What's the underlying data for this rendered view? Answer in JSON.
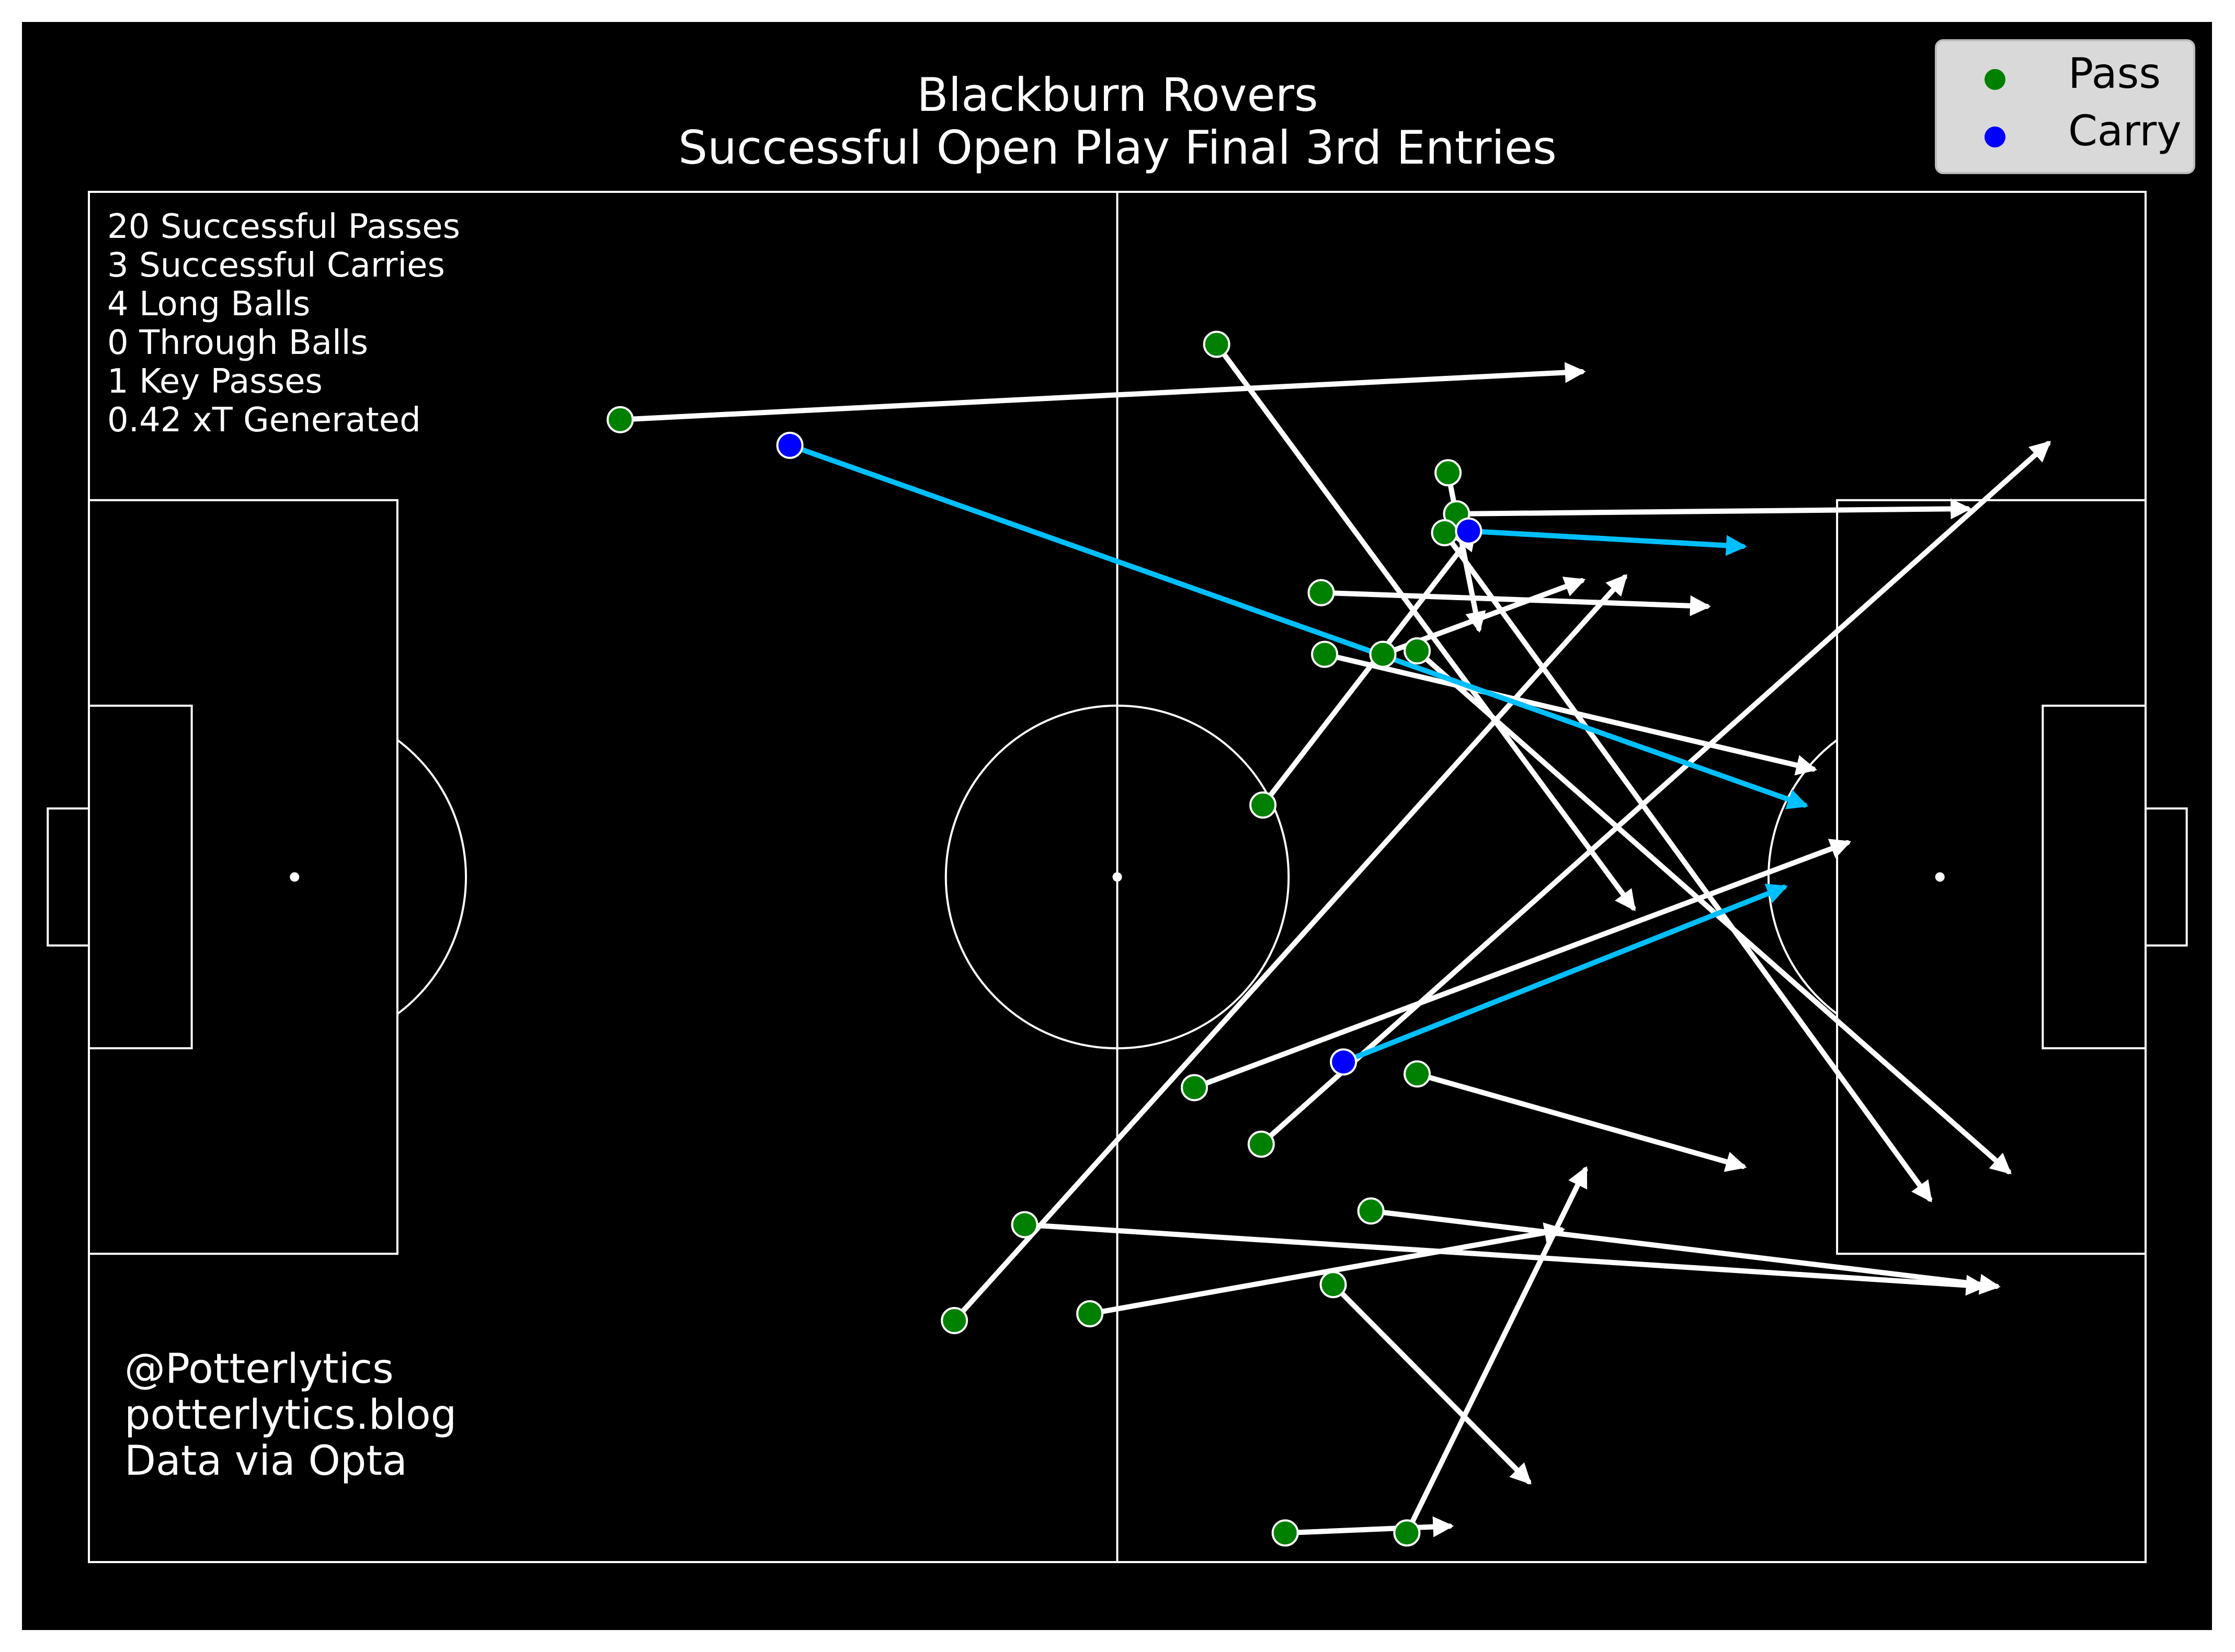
{
  "title_line1": "Blackburn Rovers",
  "title_line2": "Successful Open Play Final 3rd Entries",
  "stats": [
    "20 Successful Passes",
    "3 Successful Carries",
    "4 Long Balls",
    "0 Through Balls",
    "1 Key Passes",
    "0.42 xT Generated"
  ],
  "credits": [
    "@Potterlytics",
    "potterlytics.blog",
    "Data via Opta"
  ],
  "legend": [
    {
      "label": "Pass",
      "color": "#008000"
    },
    {
      "label": "Carry",
      "color": "#0000ff"
    }
  ],
  "colors": {
    "background": "#000000",
    "pitch_lines": "#ffffff",
    "pass_line": "#ffffff",
    "carry_line": "#00bfff",
    "pass_marker": "#008000",
    "carry_marker": "#0000ff"
  },
  "chart_data": {
    "type": "scatter",
    "pitch": {
      "length": 120,
      "width": 80
    },
    "legend_position": "top-right",
    "series": [
      {
        "name": "Pass",
        "events": [
          {
            "x": 31.0,
            "y": 13.3,
            "end_x": 87.1,
            "end_y": 10.5
          },
          {
            "x": 65.8,
            "y": 8.9,
            "end_x": 90.1,
            "end_y": 41.8
          },
          {
            "x": 79.3,
            "y": 16.4,
            "end_x": 81.1,
            "end_y": 25.5
          },
          {
            "x": 79.8,
            "y": 18.8,
            "end_x": 109.6,
            "end_y": 18.5
          },
          {
            "x": 79.1,
            "y": 19.9,
            "end_x": 107.4,
            "end_y": 58.8
          },
          {
            "x": 71.9,
            "y": 23.4,
            "end_x": 94.4,
            "end_y": 24.2
          },
          {
            "x": 72.1,
            "y": 27.0,
            "end_x": 100.6,
            "end_y": 33.7
          },
          {
            "x": 75.5,
            "y": 27.0,
            "end_x": 87.1,
            "end_y": 22.7
          },
          {
            "x": 77.5,
            "y": 26.8,
            "end_x": 112.0,
            "end_y": 57.2
          },
          {
            "x": 68.5,
            "y": 35.8,
            "end_x": 80.8,
            "end_y": 19.9
          },
          {
            "x": 64.5,
            "y": 52.3,
            "end_x": 102.6,
            "end_y": 38.0
          },
          {
            "x": 77.5,
            "y": 51.5,
            "end_x": 96.5,
            "end_y": 56.9
          },
          {
            "x": 68.4,
            "y": 55.6,
            "end_x": 114.3,
            "end_y": 14.7
          },
          {
            "x": 54.6,
            "y": 60.3,
            "end_x": 110.5,
            "end_y": 63.9
          },
          {
            "x": 74.8,
            "y": 59.5,
            "end_x": 111.3,
            "end_y": 63.9
          },
          {
            "x": 50.5,
            "y": 65.9,
            "end_x": 89.6,
            "end_y": 22.5
          },
          {
            "x": 58.4,
            "y": 65.5,
            "end_x": 85.9,
            "end_y": 60.6
          },
          {
            "x": 72.6,
            "y": 63.8,
            "end_x": 84.0,
            "end_y": 75.3
          },
          {
            "x": 69.8,
            "y": 78.3,
            "end_x": 79.4,
            "end_y": 77.9
          },
          {
            "x": 76.9,
            "y": 78.3,
            "end_x": 87.3,
            "end_y": 57.1
          }
        ]
      },
      {
        "name": "Carry",
        "events": [
          {
            "x": 40.9,
            "y": 14.8,
            "end_x": 100.1,
            "end_y": 35.8
          },
          {
            "x": 80.5,
            "y": 19.8,
            "end_x": 96.5,
            "end_y": 20.7
          },
          {
            "x": 73.2,
            "y": 50.8,
            "end_x": 98.9,
            "end_y": 40.6
          }
        ]
      }
    ]
  }
}
